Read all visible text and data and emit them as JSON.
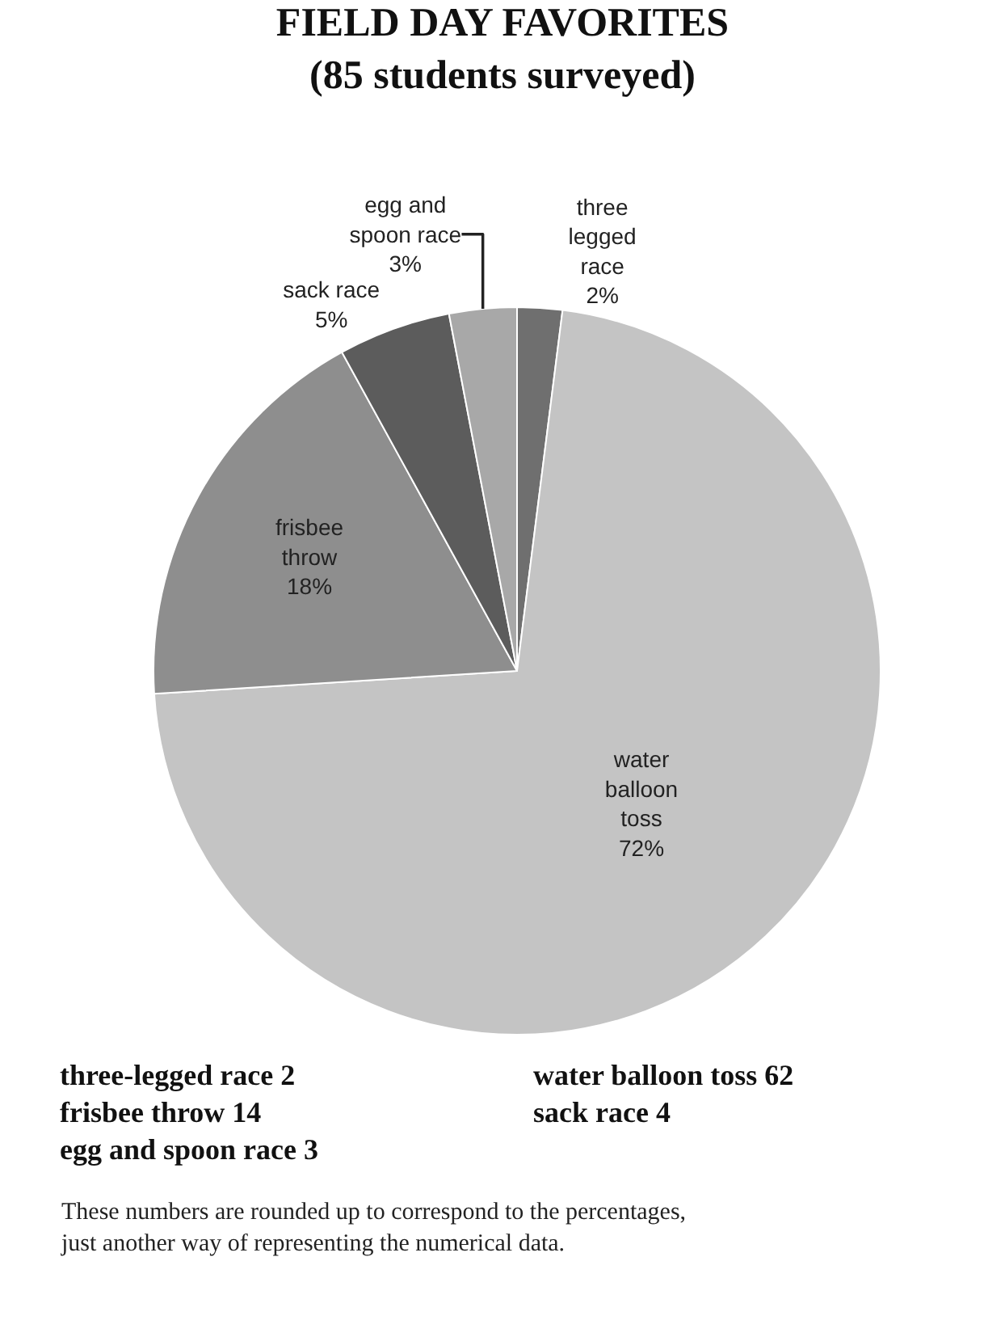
{
  "chart_data": {
    "type": "pie",
    "title": "FIELD DAY FAVORITES",
    "subtitle": "(85 students surveyed)",
    "categories": [
      "three legged race",
      "water balloon toss",
      "frisbee throw",
      "sack race",
      "egg and spoon race"
    ],
    "values": [
      2,
      72,
      18,
      5,
      3
    ],
    "value_labels": [
      "2%",
      "72%",
      "18%",
      "5%",
      "3%"
    ],
    "colors": [
      "#6f6f6f",
      "#c4c4c4",
      "#8e8e8e",
      "#5c5c5c",
      "#a8a8a8"
    ],
    "legend": false,
    "annotations": [
      "three-legged race 2",
      "water balloon toss 62",
      "frisbee throw 14",
      "sack race 4",
      "egg and spoon race 3",
      "These numbers are rounded up to correspond to the percentages, just another way of representing the numerical data."
    ]
  }
}
